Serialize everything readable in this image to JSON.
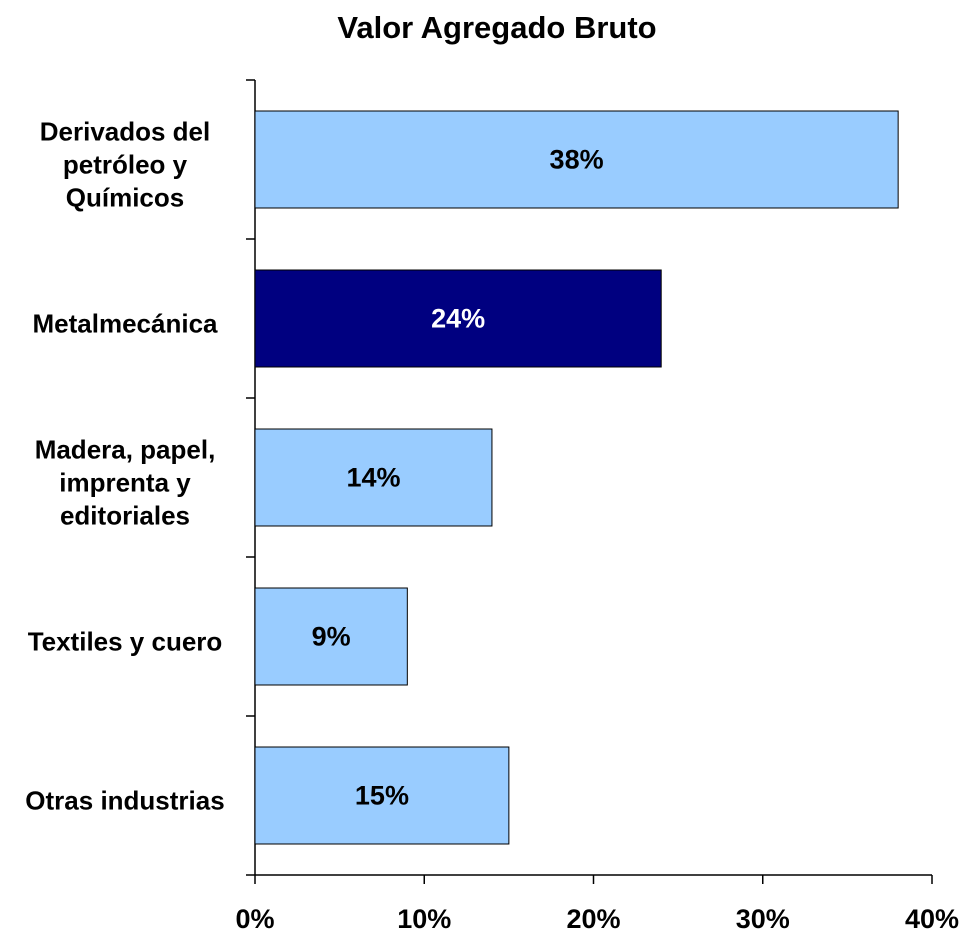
{
  "chart_data": {
    "type": "barh",
    "title": "Valor Agregado Bruto",
    "categories": [
      "Derivados del petróleo y Químicos",
      "Metalmecánica",
      "Madera, papel, imprenta y editoriales",
      "Textiles y cuero",
      "Otras industrias"
    ],
    "values": [
      38,
      24,
      14,
      9,
      15
    ],
    "value_labels": [
      "38%",
      "24%",
      "14%",
      "9%",
      "15%"
    ],
    "colors": [
      "#99ccff",
      "#000080",
      "#99ccff",
      "#99ccff",
      "#99ccff"
    ],
    "xlim": [
      0,
      40
    ],
    "xticks": [
      {
        "value": 0,
        "label": "0%"
      },
      {
        "value": 10,
        "label": "10%"
      },
      {
        "value": 20,
        "label": "20%"
      },
      {
        "value": 30,
        "label": "30%"
      },
      {
        "value": 40,
        "label": "40%"
      }
    ]
  }
}
